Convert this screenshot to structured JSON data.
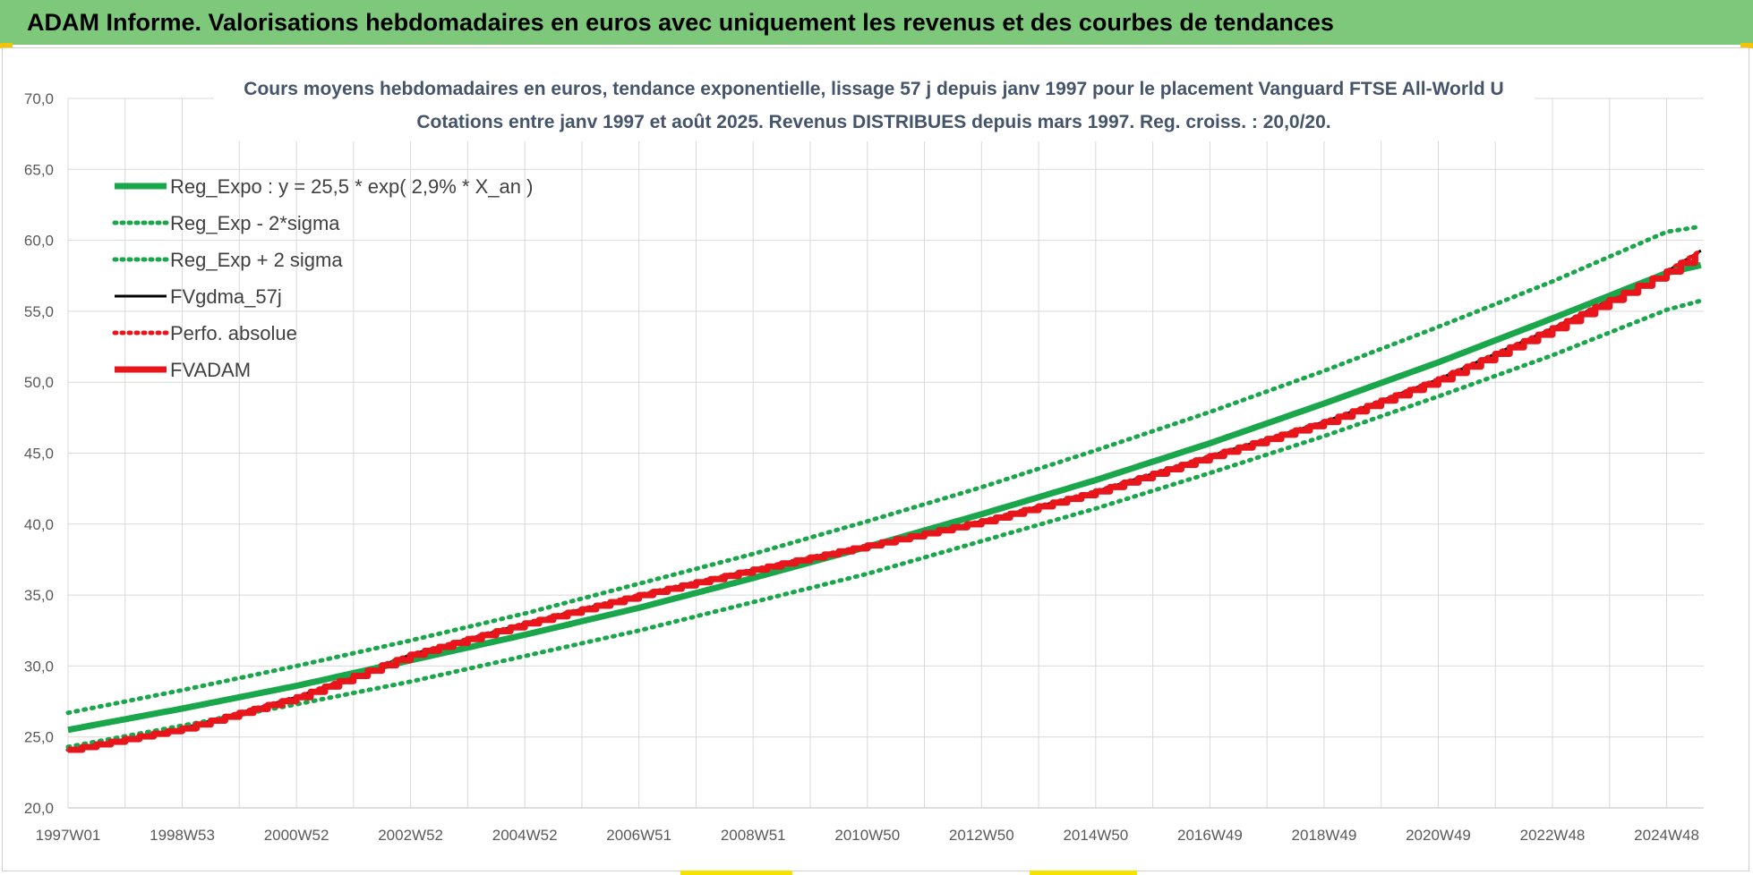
{
  "banner": {
    "title": "ADAM Informe. Valorisations hebdomadaires en euros avec uniquement les revenus et des courbes de tendances"
  },
  "colors": {
    "banner_bg": "#7dc87a",
    "trend_green": "#1aa64a",
    "fvadam_red": "#e8151b",
    "fvgdma_black": "#000000",
    "gridline": "#d9d9d9",
    "axis_text": "#595959"
  },
  "chart_data": {
    "type": "line",
    "title_line1": "Cours moyens hebdomadaires en euros, tendance exponentielle, lissage 57 j depuis janv 1997 pour le placement Vanguard FTSE All-World U",
    "title_line2": "Cotations entre janv 1997 et août 2025. Revenus DISTRIBUES depuis mars 1997. Reg. croiss. : 20,0/20.",
    "xlabel": "",
    "ylabel": "",
    "ylim": [
      20,
      70
    ],
    "yticks": [
      20,
      25,
      30,
      35,
      40,
      45,
      50,
      55,
      60,
      65,
      70
    ],
    "ytick_labels": [
      "20,0",
      "25,0",
      "30,0",
      "35,0",
      "40,0",
      "45,0",
      "50,0",
      "55,0",
      "60,0",
      "65,0",
      "70,0"
    ],
    "xlim": [
      1997.0,
      2025.65
    ],
    "xtick_labels": [
      "1997W01",
      "1998W53",
      "2000W52",
      "2002W52",
      "2004W52",
      "2006W51",
      "2008W51",
      "2010W50",
      "2012W50",
      "2014W50",
      "2016W49",
      "2018W49",
      "2020W49",
      "2022W48",
      "2024W48"
    ],
    "xtick_years": [
      1997.0,
      1999.0,
      2001.0,
      2003.0,
      2005.0,
      2007.0,
      2009.0,
      2011.0,
      2013.0,
      2015.0,
      2017.0,
      2019.0,
      2021.0,
      2023.0,
      2025.0
    ],
    "grid": true,
    "legend_position": "top-left",
    "x": [
      1997.0,
      1999.0,
      2001.0,
      2003.0,
      2005.0,
      2007.0,
      2009.0,
      2011.0,
      2013.0,
      2015.0,
      2017.0,
      2019.0,
      2021.0,
      2023.0,
      2025.0,
      2025.65
    ],
    "series": [
      {
        "name": "Reg_Expo : y = 25,5 * exp( 2,9% *  X_an )",
        "style": "solid-thick",
        "color": "#1aa64a",
        "values": [
          25.5,
          27.0,
          28.6,
          30.4,
          32.2,
          34.1,
          36.2,
          38.4,
          40.7,
          43.1,
          45.7,
          48.5,
          51.4,
          54.5,
          57.7,
          58.3
        ]
      },
      {
        "name": "Reg_Exp - 2*sigma",
        "style": "dotted",
        "color": "#1aa64a",
        "values": [
          24.3,
          25.8,
          27.3,
          28.9,
          30.7,
          32.5,
          34.5,
          36.5,
          38.8,
          41.1,
          43.6,
          46.2,
          49.0,
          51.9,
          55.1,
          55.8
        ]
      },
      {
        "name": "Reg_Exp + 2 sigma",
        "style": "dotted",
        "color": "#1aa64a",
        "values": [
          26.7,
          28.3,
          30.0,
          31.8,
          33.7,
          35.8,
          37.9,
          40.2,
          42.6,
          45.2,
          47.9,
          50.8,
          53.9,
          57.1,
          60.6,
          61.0
        ]
      },
      {
        "name": "FVgdma_57j",
        "style": "solid",
        "color": "#000000",
        "values": [
          24.1,
          25.6,
          27.8,
          30.8,
          33.0,
          35.0,
          36.8,
          38.5,
          40.2,
          42.3,
          44.8,
          47.2,
          50.2,
          53.8,
          57.8,
          59.4
        ]
      },
      {
        "name": "Perfo. absolue",
        "style": "dotted",
        "color": "#e8151b",
        "values": [
          24.1,
          25.6,
          27.8,
          30.8,
          33.0,
          35.0,
          36.8,
          38.5,
          40.2,
          42.3,
          44.8,
          47.2,
          50.2,
          53.8,
          57.8,
          59.4
        ]
      },
      {
        "name": "FVADAM",
        "style": "solid-thick",
        "color": "#e8151b",
        "values": [
          24.1,
          25.6,
          27.8,
          30.8,
          33.0,
          35.0,
          36.8,
          38.5,
          40.2,
          42.3,
          44.8,
          47.2,
          50.2,
          53.8,
          57.8,
          59.4
        ]
      }
    ]
  }
}
